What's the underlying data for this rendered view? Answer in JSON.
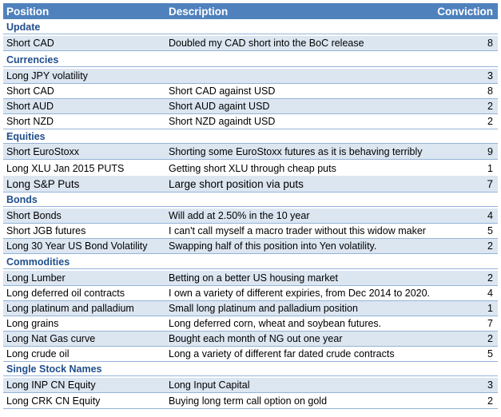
{
  "header": {
    "position": "Position",
    "description": "Description",
    "conviction": "Conviction"
  },
  "sections": [
    {
      "title": "Update",
      "rows": [
        {
          "position": "Short CAD",
          "description": "Doubled my CAD short into the BoC release",
          "conviction": "8"
        }
      ]
    },
    {
      "title": "Currencies",
      "rows": [
        {
          "position": "Long JPY volatility",
          "description": "",
          "conviction": "3"
        },
        {
          "position": "Short CAD",
          "description": "Short CAD against USD",
          "conviction": "8"
        },
        {
          "position": "Short AUD",
          "description": "Short AUD againt USD",
          "conviction": "2"
        },
        {
          "position": "Short NZD",
          "description": "Short NZD againdt USD",
          "conviction": "2"
        }
      ]
    },
    {
      "title": "Equities",
      "rows": [
        {
          "position": "Short EuroStoxx",
          "description": "Shorting some EuroStoxx futures as it is behaving terribly",
          "conviction": "9"
        },
        {
          "position": "Long XLU Jan 2015 PUTS",
          "description": "Getting short XLU through cheap puts",
          "conviction": "1"
        },
        {
          "position": "Long S&P Puts",
          "description": "Large short position via puts",
          "conviction": "7"
        }
      ]
    },
    {
      "title": "Bonds",
      "rows": [
        {
          "position": "Short Bonds",
          "description": "Will add at 2.50% in the 10 year",
          "conviction": "4"
        },
        {
          "position": "Short JGB futures",
          "description": "I can't call myself a macro trader without this widow maker",
          "conviction": "5"
        },
        {
          "position": "Long 30 Year US Bond Volatility",
          "description": "Swapping half of this position into Yen volatility.",
          "conviction": "2"
        }
      ]
    },
    {
      "title": "Commodities",
      "rows": [
        {
          "position": "Long Lumber",
          "description": "Betting on a better US housing market",
          "conviction": "2"
        },
        {
          "position": "Long deferred oil contracts",
          "description": "I own a variety of different expiries, from Dec 2014 to 2020.",
          "conviction": "4"
        },
        {
          "position": "Long platinum and palladium",
          "description": "Small long platinum and palladium position",
          "conviction": "1"
        },
        {
          "position": "Long grains",
          "description": "Long deferred corn, wheat and soybean futures.",
          "conviction": "7"
        },
        {
          "position": "Long Nat Gas curve",
          "description": "Bought each month of NG out one year",
          "conviction": "2"
        },
        {
          "position": "Long crude oil",
          "description": "Long a variety of different far dated crude contracts",
          "conviction": "5"
        }
      ]
    },
    {
      "title": "Single Stock Names",
      "rows": [
        {
          "position": "Long INP CN Equity",
          "description": "Long Input Capital",
          "conviction": "3"
        },
        {
          "position": "Long CRK CN Equity",
          "description": "Buying long term call option on gold",
          "conviction": "2"
        }
      ]
    }
  ],
  "colors": {
    "header_bg": "#4f81bd",
    "band_bg": "#dce6f1",
    "section_text": "#1f4e8c",
    "grid_line": "#95b3d7"
  }
}
